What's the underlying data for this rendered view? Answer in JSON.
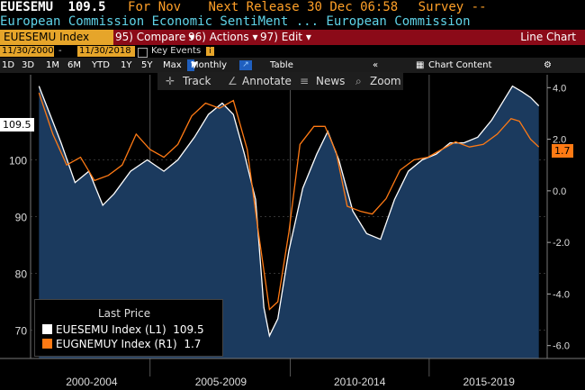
{
  "header": {
    "ticker": "EUESEMU",
    "last": "109.5",
    "for_text": "For Nov",
    "release_text": "Next Release 30 Dec 06:58",
    "survey_text": "Survey --",
    "subtitle": "European Commission Economic SentiMent ...  European Commission"
  },
  "commandbar": {
    "security": "EUESEMU Index",
    "compare": "95) Compare",
    "actions": "96) Actions",
    "edit": "97) Edit",
    "view": "Line Chart"
  },
  "daterow": {
    "start": "11/30/2000",
    "end": "11/30/2018",
    "key_events": "Key Events"
  },
  "timebar": {
    "ranges": [
      "1D",
      "3D",
      "1M",
      "6M",
      "YTD",
      "1Y",
      "5Y",
      "Max"
    ],
    "periodicity": "Monthly",
    "table": "Table",
    "chart_content": "Chart Content"
  },
  "toolbar": {
    "track": "Track",
    "annotate": "Annotate",
    "news": "News",
    "zoom": "Zoom"
  },
  "legend": {
    "title": "Last Price"
  },
  "colors": {
    "white_series": "#ffffff",
    "orange_series": "#ff7a14",
    "area": "#1b3a5e"
  },
  "chart_data": {
    "type": "line",
    "x_labels": [
      "2000-2004",
      "2005-2009",
      "2010-2014",
      "2015-2019"
    ],
    "left_axis": {
      "ticks": [
        70,
        80,
        90,
        100
      ],
      "range": [
        65,
        115
      ]
    },
    "right_axis": {
      "ticks": [
        "-6.0",
        "-4.0",
        "-2.0",
        "0.0",
        "2.0",
        "4.0"
      ],
      "range": [
        -6.5,
        4.5
      ]
    },
    "series": [
      {
        "name": "EUESEMU Index  (L1)",
        "last": "109.5",
        "axis": "left",
        "x": [
          2000.9,
          2001.3,
          2001.7,
          2002.2,
          2002.7,
          2003.2,
          2003.6,
          2004.2,
          2004.8,
          2005.4,
          2005.9,
          2006.5,
          2007.0,
          2007.5,
          2007.9,
          2008.3,
          2008.7,
          2009.0,
          2009.2,
          2009.5,
          2009.9,
          2010.4,
          2010.9,
          2011.3,
          2011.7,
          2012.2,
          2012.7,
          2013.2,
          2013.7,
          2014.2,
          2014.7,
          2015.2,
          2015.7,
          2016.2,
          2016.7,
          2017.2,
          2017.7,
          2017.95,
          2018.3,
          2018.6,
          2018.9
        ],
        "y": [
          113,
          108,
          103,
          96,
          98,
          92,
          94,
          98,
          100,
          98,
          100,
          104,
          108,
          110,
          108,
          101,
          93,
          74,
          69,
          72,
          84,
          95,
          101,
          105,
          100,
          91,
          87,
          86,
          93,
          98,
          100,
          101,
          103,
          103,
          104,
          107,
          111,
          113,
          112,
          111,
          109.5
        ]
      },
      {
        "name": "EUGNEMUY Index  (R1)",
        "last": "1.7",
        "axis": "right",
        "x": [
          2000.9,
          2001.4,
          2001.9,
          2002.4,
          2002.9,
          2003.4,
          2003.9,
          2004.4,
          2004.9,
          2005.4,
          2005.9,
          2006.4,
          2006.9,
          2007.4,
          2007.9,
          2008.4,
          2008.8,
          2009.2,
          2009.5,
          2009.9,
          2010.3,
          2010.8,
          2011.2,
          2011.6,
          2012.0,
          2012.5,
          2012.9,
          2013.4,
          2013.9,
          2014.4,
          2014.9,
          2015.4,
          2015.9,
          2016.4,
          2016.9,
          2017.4,
          2017.9,
          2018.2,
          2018.6,
          2018.9
        ],
        "y": [
          3.8,
          2.2,
          1.0,
          1.3,
          0.4,
          0.6,
          1.0,
          2.2,
          1.6,
          1.3,
          1.8,
          2.9,
          3.4,
          3.2,
          3.5,
          1.6,
          -1.6,
          -4.6,
          -4.3,
          -1.6,
          1.8,
          2.5,
          2.5,
          1.5,
          -0.6,
          -0.8,
          -0.9,
          -0.3,
          0.8,
          1.2,
          1.3,
          1.6,
          1.9,
          1.7,
          1.8,
          2.2,
          2.8,
          2.7,
          2.0,
          1.7
        ]
      }
    ],
    "x_range": [
      2000.6,
      2019.2
    ]
  }
}
